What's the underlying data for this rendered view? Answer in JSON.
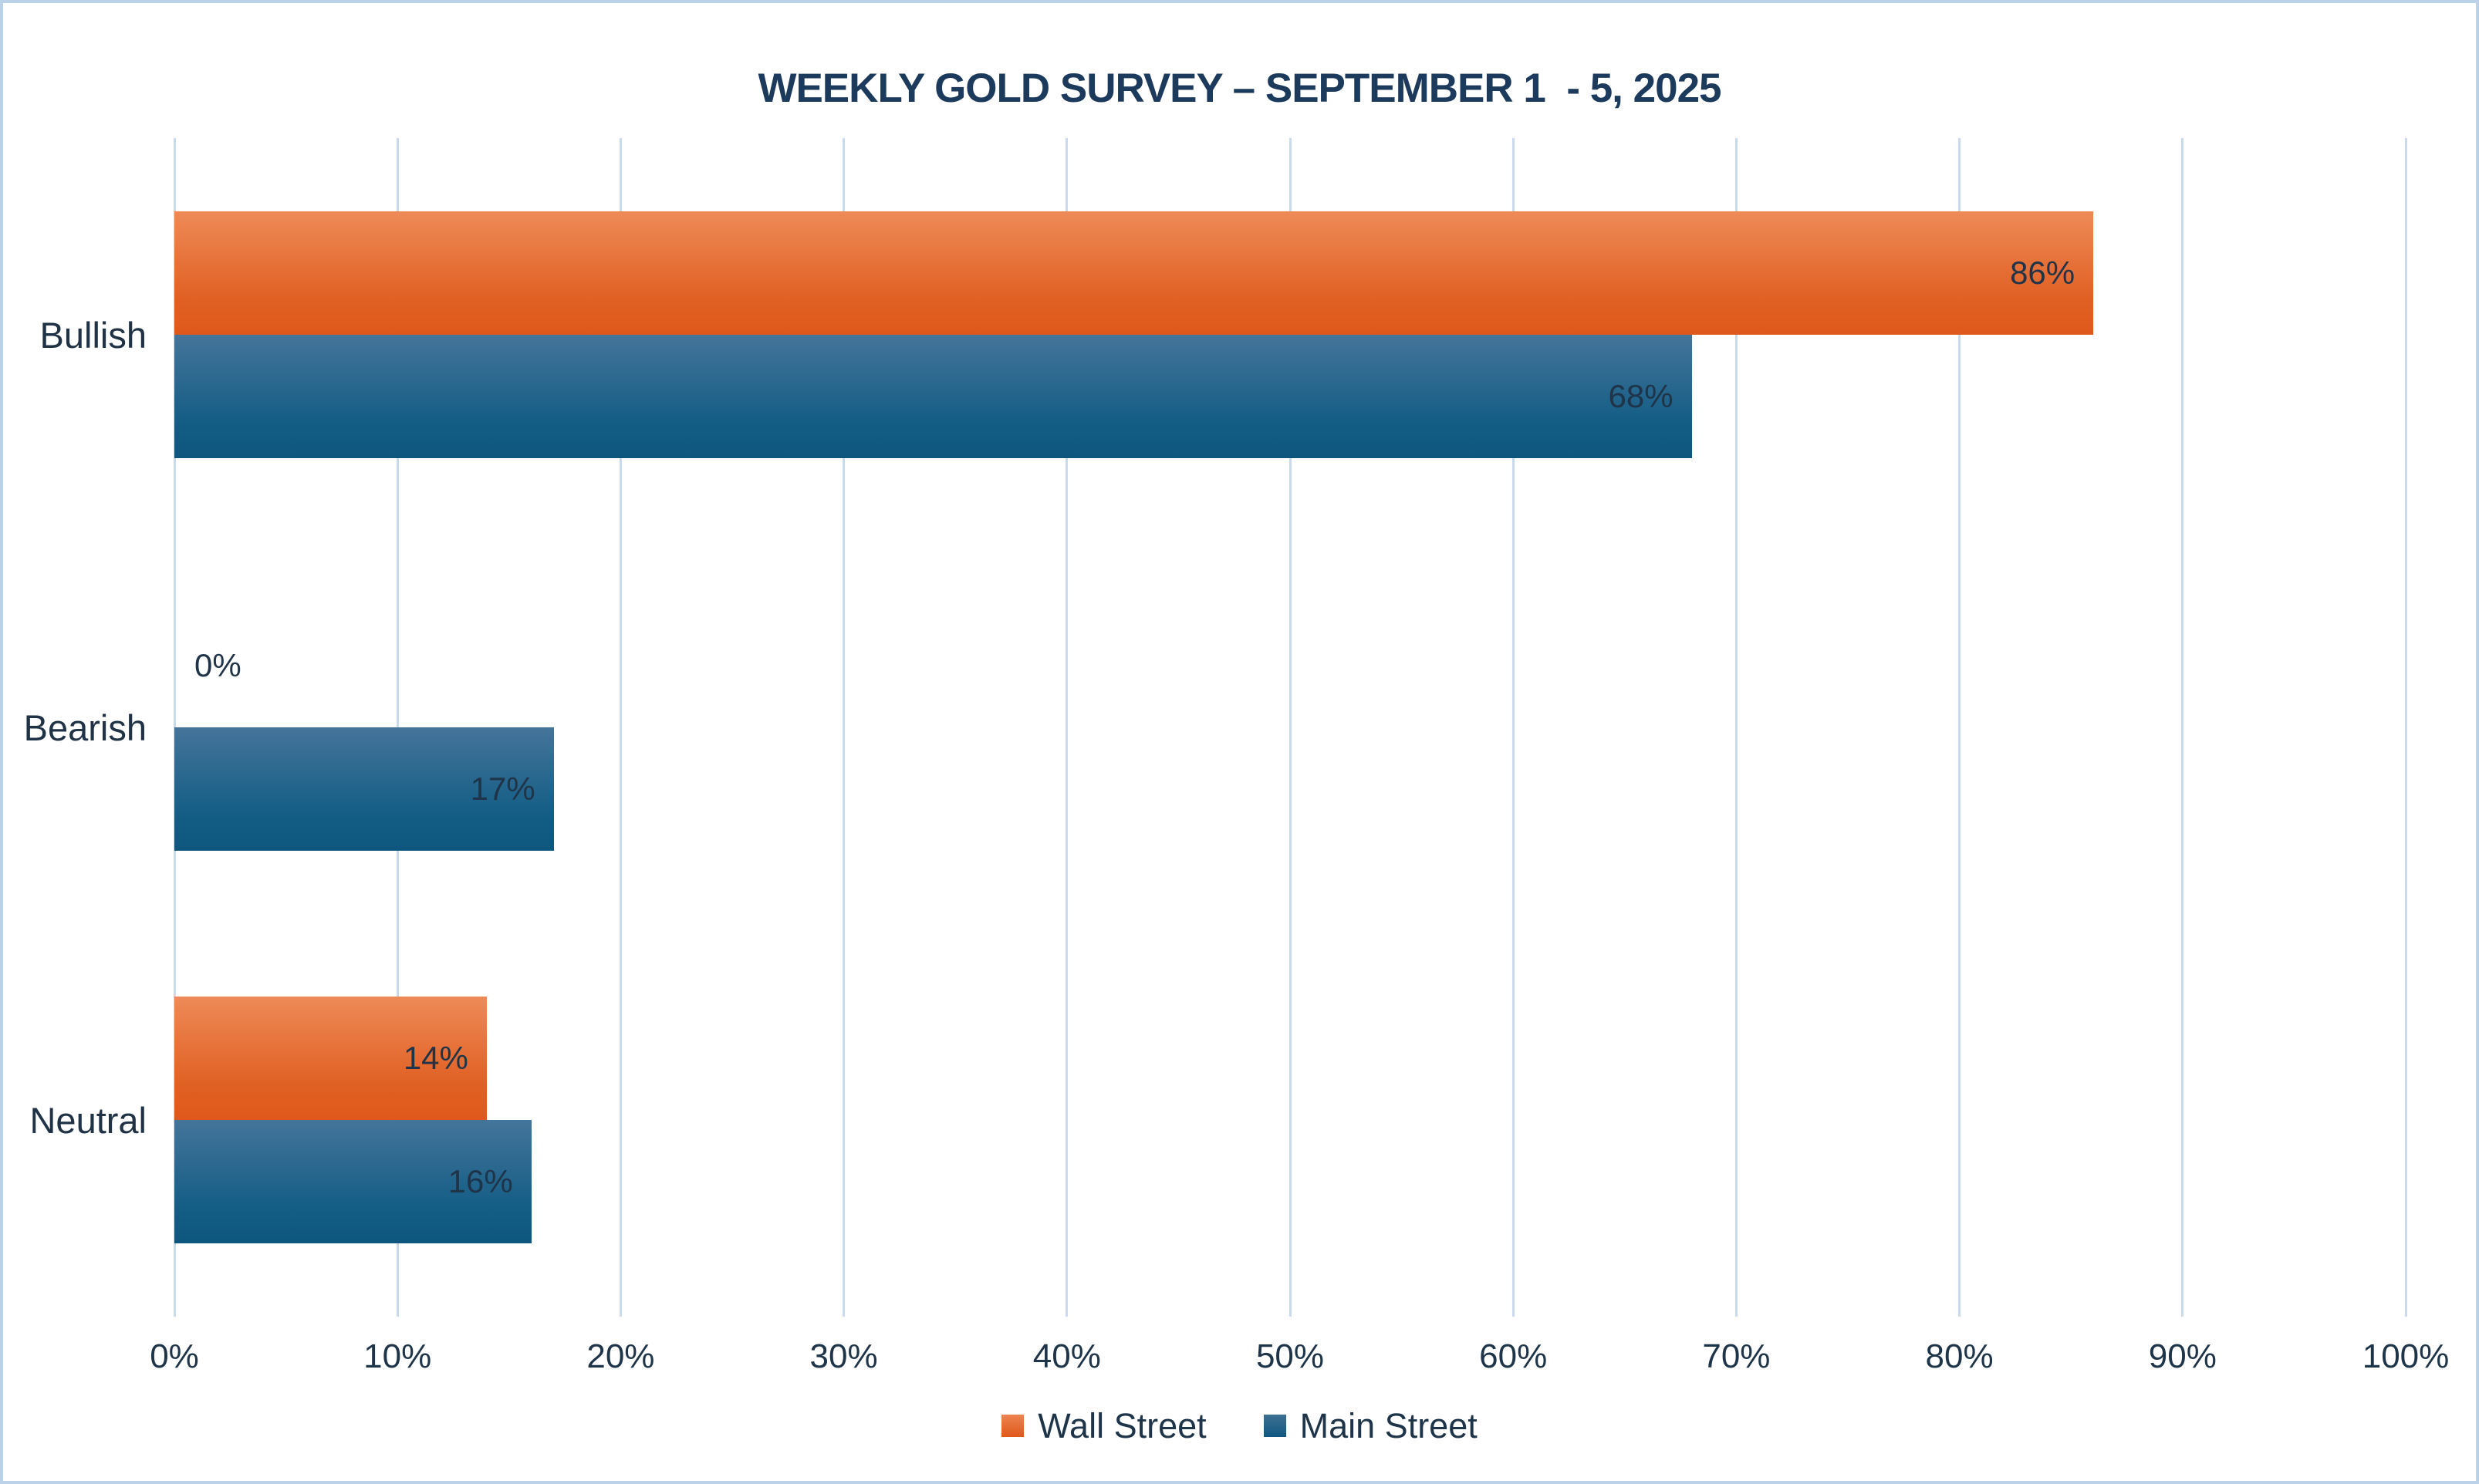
{
  "chart_data": {
    "type": "bar",
    "orientation": "horizontal",
    "title": "WEEKLY GOLD SURVEY – SEPTEMBER 1  - 5, 2025",
    "categories": [
      "Bullish",
      "Bearish",
      "Neutral"
    ],
    "series": [
      {
        "name": "Wall Street",
        "values": [
          86,
          0,
          14
        ],
        "labels": [
          "86%",
          "0%",
          "14%"
        ],
        "color_top": "#EE8A57",
        "color_bottom": "#DF581B"
      },
      {
        "name": "Main Street",
        "values": [
          68,
          17,
          16
        ],
        "labels": [
          "68%",
          "17%",
          "16%"
        ],
        "color_top": "#45749A",
        "color_bottom": "#0E567E"
      }
    ],
    "x_ticks": [
      "0%",
      "10%",
      "20%",
      "30%",
      "40%",
      "50%",
      "60%",
      "70%",
      "80%",
      "90%",
      "100%"
    ],
    "xlim": [
      0,
      100
    ],
    "grid": "vertical",
    "legend_position": "bottom",
    "colors": {
      "text": "#1E3449",
      "title": "#1C3A5C",
      "gridline": "#C8DAEC",
      "frame_border": "#BCD2E8",
      "background": "#FFFFFF"
    }
  }
}
